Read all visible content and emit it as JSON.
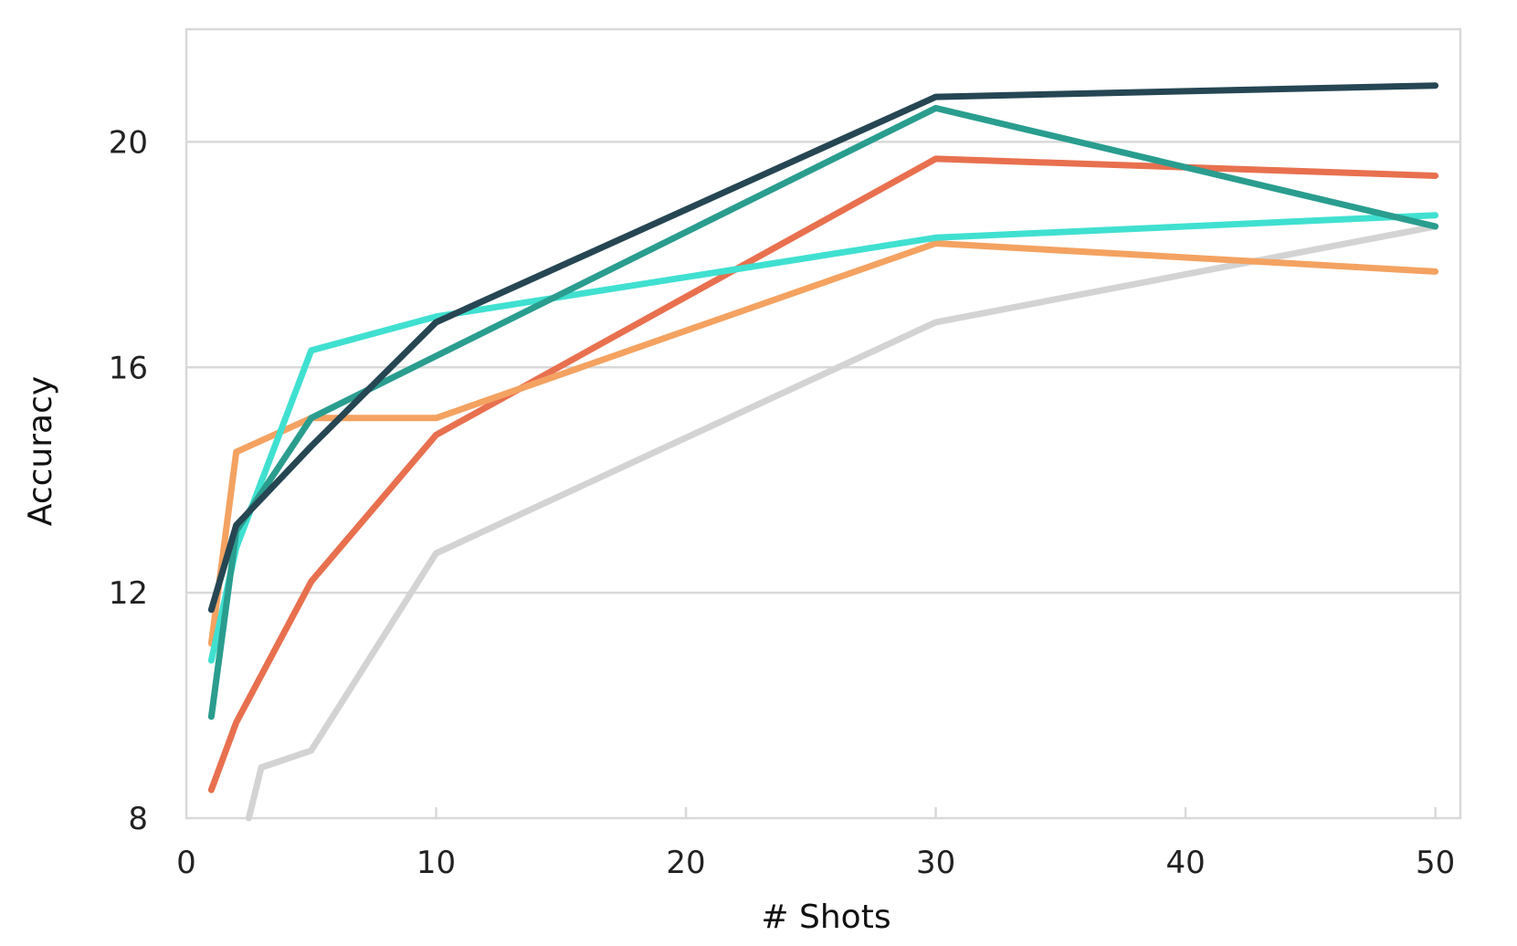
{
  "chart_data": {
    "type": "line",
    "xlabel": "# Shots",
    "ylabel": "Accuracy",
    "xlim": [
      0,
      51
    ],
    "ylim": [
      8,
      22
    ],
    "xticks": [
      0,
      10,
      20,
      30,
      40,
      50
    ],
    "yticks": [
      8,
      12,
      16,
      20
    ],
    "grid": "horizontal",
    "legend": "none",
    "series": [
      {
        "color": "#d3d3d3",
        "x": [
          2.5,
          3,
          5,
          10,
          30,
          50
        ],
        "y": [
          8.0,
          8.9,
          9.2,
          12.7,
          16.8,
          18.5
        ]
      },
      {
        "color": "#e8704f",
        "x": [
          1,
          2,
          5,
          10,
          30,
          50
        ],
        "y": [
          8.5,
          9.7,
          12.2,
          14.8,
          19.7,
          19.4
        ]
      },
      {
        "color": "#f4a261",
        "x": [
          1,
          2,
          5,
          10,
          30,
          50
        ],
        "y": [
          11.1,
          14.5,
          15.1,
          15.1,
          18.2,
          17.7
        ]
      },
      {
        "color": "#40e0d0",
        "x": [
          1,
          2,
          5,
          10,
          30,
          50
        ],
        "y": [
          10.8,
          12.8,
          16.3,
          16.9,
          18.3,
          18.7
        ]
      },
      {
        "color": "#2a9d8f",
        "x": [
          1,
          2,
          5,
          10,
          30,
          50
        ],
        "y": [
          9.8,
          13.1,
          15.1,
          16.2,
          20.6,
          18.5
        ]
      },
      {
        "color": "#264653",
        "x": [
          1,
          2,
          5,
          10,
          30,
          50
        ],
        "y": [
          11.7,
          13.2,
          14.6,
          16.8,
          20.8,
          21.0
        ]
      }
    ]
  }
}
